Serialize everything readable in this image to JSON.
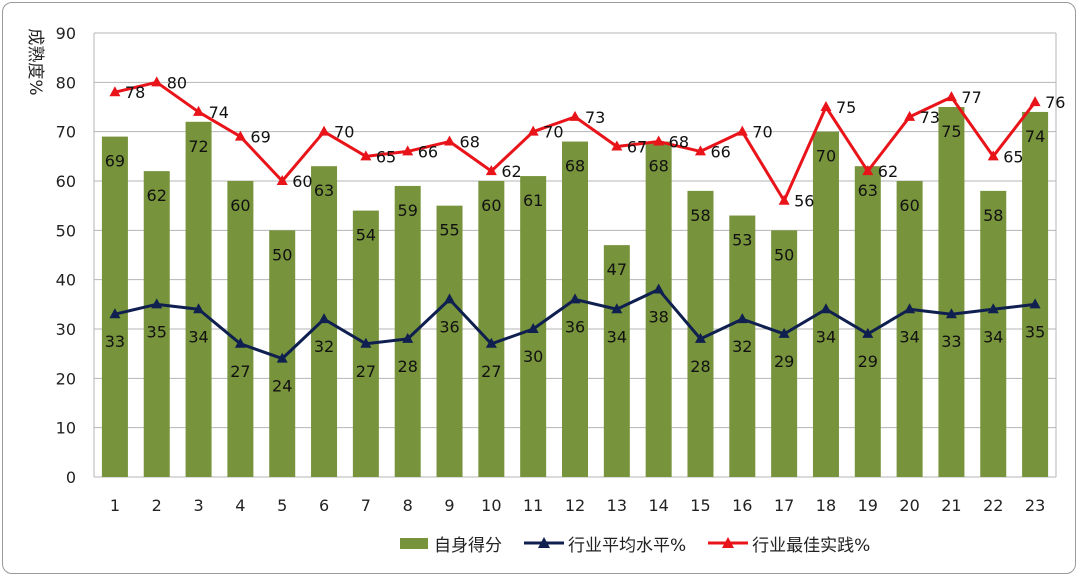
{
  "chart_data": {
    "type": "bar",
    "ylabel": "成熟度%",
    "ylim": [
      0,
      90
    ],
    "yticks": [
      0,
      10,
      20,
      30,
      40,
      50,
      60,
      70,
      80,
      90
    ],
    "grid": true,
    "legend_position": "bottom",
    "categories": [
      "1",
      "2",
      "3",
      "4",
      "5",
      "6",
      "7",
      "8",
      "9",
      "10",
      "11",
      "12",
      "13",
      "14",
      "15",
      "16",
      "17",
      "18",
      "19",
      "20",
      "21",
      "22",
      "23"
    ],
    "series": [
      {
        "name": "自身得分",
        "kind": "bar",
        "color": "#77933c",
        "values": [
          69,
          62,
          72,
          60,
          50,
          63,
          54,
          59,
          55,
          60,
          61,
          68,
          47,
          68,
          58,
          53,
          50,
          70,
          63,
          60,
          75,
          58,
          74
        ]
      },
      {
        "name": "行业平均水平%",
        "kind": "line",
        "color": "#0f1f4f",
        "values": [
          33,
          35,
          34,
          27,
          24,
          32,
          27,
          28,
          36,
          27,
          30,
          36,
          34,
          38,
          28,
          32,
          29,
          34,
          29,
          34,
          33,
          34,
          35
        ]
      },
      {
        "name": "行业最佳实践%",
        "kind": "line",
        "color": "#e8141a",
        "values": [
          78,
          80,
          74,
          69,
          60,
          70,
          65,
          66,
          68,
          62,
          70,
          73,
          67,
          68,
          66,
          70,
          56,
          75,
          62,
          73,
          77,
          65,
          76
        ]
      }
    ]
  }
}
